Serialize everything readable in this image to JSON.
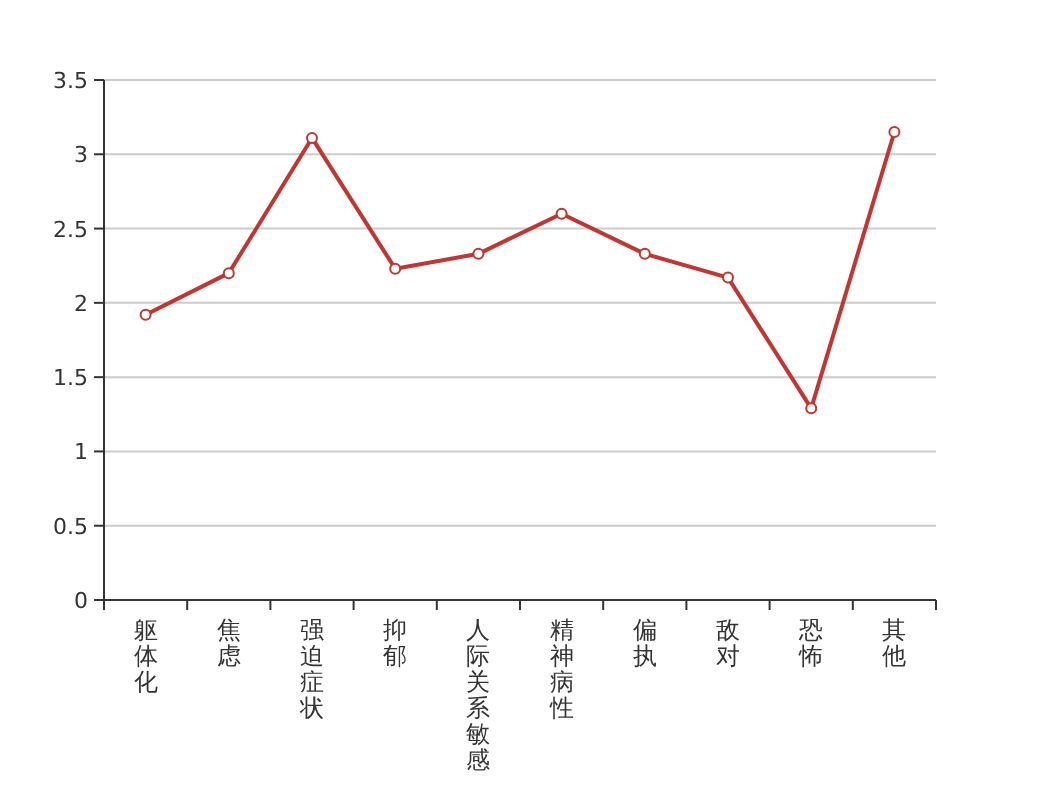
{
  "chart_data": {
    "type": "line",
    "categories": [
      "躯体化",
      "焦虑",
      "强迫症状",
      "抑郁",
      "人际关系敏感",
      "精神病性",
      "偏执",
      "敌对",
      "恐怖",
      "其他"
    ],
    "series": [
      {
        "color": "#c23531",
        "values": [
          1.92,
          2.2,
          3.11,
          2.23,
          2.33,
          2.6,
          2.33,
          2.17,
          1.29,
          3.15
        ]
      }
    ],
    "ylim": [
      0,
      3.5
    ],
    "yticks": [
      0,
      0.5,
      1,
      1.5,
      2,
      2.5,
      3,
      3.5
    ],
    "grid": "y",
    "marker": "circle",
    "line_style": "solid"
  }
}
